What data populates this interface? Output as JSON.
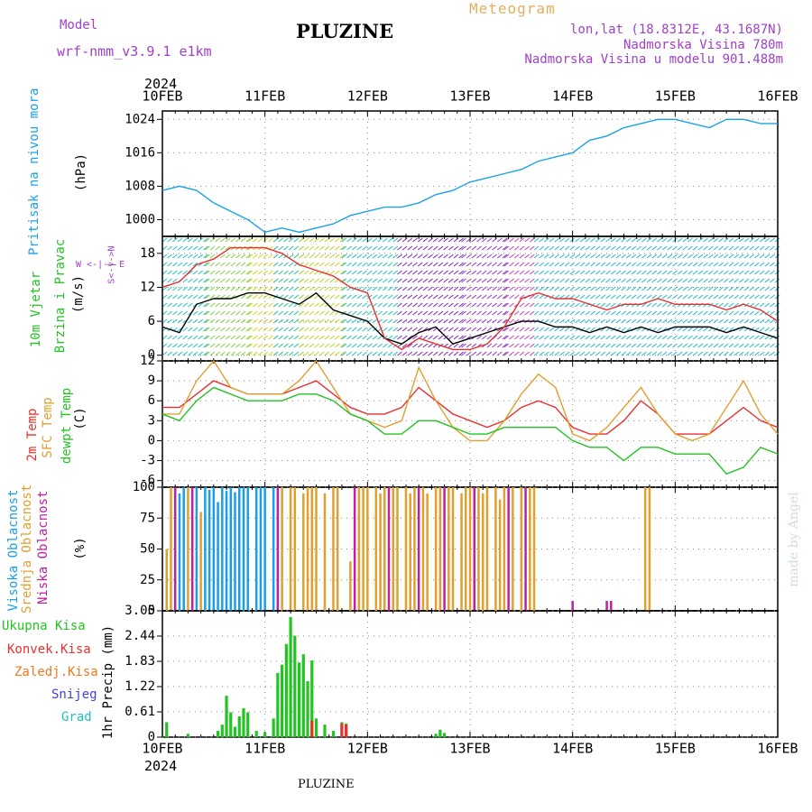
{
  "header": {
    "model_label": "Model",
    "model_name": "wrf-nmm_v3.9.1  e1km",
    "station": "PLUZINE",
    "product": "Meteogram",
    "lonlat": "lon,lat (18.8312E, 43.1687N)",
    "elevation": "Nadmorska Visina 780m",
    "model_elevation": "Nadmorska Visina u modelu 901.488m",
    "year_top": "2024",
    "year_bottom": "2024",
    "footer_station": "PLUZINE",
    "watermark": "made by Angel"
  },
  "colors": {
    "pressure": "#1aa3e8",
    "wind_speed": "#000000",
    "gust": "#e83030",
    "temp2m": "#e83030",
    "sfc_temp": "#e0a030",
    "dewpt": "#22c422",
    "high_cloud": "#1a9ee8",
    "mid_cloud": "#e0a030",
    "low_cloud": "#c0209e",
    "total_precip": "#22c422",
    "conv_precip": "#e83030",
    "frozen_precip": "#f07820",
    "snow": "#4040e0",
    "graupel": "#20c0c0"
  },
  "x_ticks": [
    "10FEB",
    "11FEB",
    "12FEB",
    "13FEB",
    "14FEB",
    "15FEB",
    "16FEB"
  ],
  "panels": {
    "pressure": {
      "label": "Pritisak na nivou mora",
      "unit": "(hPa)",
      "ticks": [
        "1024",
        "1016",
        "1008",
        "1000"
      ]
    },
    "wind": {
      "label1": "10m Vjetar",
      "label2": "Brzina i Pravac",
      "unit": "(m/s)",
      "ticks": [
        "18",
        "12",
        "6",
        "0"
      ],
      "compass": "W <-|-> E",
      "compass_ns": "S<-|->N"
    },
    "temp": {
      "label1": "2m Temp",
      "label2": "SFC Temp",
      "label3": "dewpt Temp",
      "unit": "(C)",
      "ticks": [
        "12",
        "9",
        "6",
        "3",
        "0",
        "-3",
        "-6"
      ]
    },
    "cloud": {
      "label1": "Visoka Oblacnost",
      "label2": "Srednja Oblacnost",
      "label3": "Niska Oblacnost",
      "unit": "(%)",
      "ticks": [
        "100",
        "75",
        "50",
        "25",
        "0"
      ]
    },
    "precip": {
      "unit": "1hr Precip (mm)",
      "ticks": [
        "3.05",
        "2.44",
        "1.83",
        "1.22",
        "0.61",
        "0"
      ],
      "legend": [
        "Ukupna Kisa",
        "Konvek.Kisa",
        "Zaledj.Kisa",
        "Snijeg",
        "Grad"
      ]
    }
  },
  "chart_data": [
    {
      "type": "line",
      "name": "pressure",
      "x_unit": "hours since 10FEB 00UTC",
      "ylim": [
        996,
        1026
      ],
      "series": [
        {
          "name": "Pritisak na nivou mora",
          "x": [
            0,
            4,
            8,
            12,
            16,
            20,
            24,
            28,
            32,
            36,
            40,
            44,
            48,
            52,
            56,
            60,
            64,
            68,
            72,
            76,
            80,
            84,
            88,
            92,
            96,
            100,
            104,
            108,
            112,
            116,
            120,
            124,
            128,
            132,
            136,
            140,
            144
          ],
          "values": [
            1007,
            1008,
            1007,
            1004,
            1002,
            1000,
            997,
            998,
            997,
            998,
            999,
            1001,
            1002,
            1003,
            1003,
            1004,
            1006,
            1007,
            1009,
            1010,
            1011,
            1012,
            1014,
            1015,
            1016,
            1019,
            1020,
            1022,
            1023,
            1024,
            1024,
            1023,
            1022,
            1024,
            1024,
            1023,
            1023
          ]
        }
      ]
    },
    {
      "type": "line",
      "name": "wind",
      "x_unit": "hours since 10FEB 00UTC",
      "ylim": [
        -1,
        21
      ],
      "series": [
        {
          "name": "wind_speed",
          "x": [
            0,
            4,
            8,
            12,
            16,
            20,
            24,
            28,
            32,
            36,
            40,
            44,
            48,
            52,
            56,
            60,
            64,
            68,
            72,
            76,
            80,
            84,
            88,
            92,
            96,
            100,
            104,
            108,
            112,
            116,
            120,
            124,
            128,
            132,
            136,
            140,
            144
          ],
          "values": [
            5,
            4,
            9,
            10,
            10,
            11,
            11,
            10,
            9,
            11,
            8,
            7,
            6,
            3,
            2,
            4,
            5,
            2,
            3,
            4,
            5,
            6,
            6,
            5,
            5,
            4,
            5,
            4,
            5,
            4,
            5,
            5,
            5,
            4,
            5,
            4,
            3
          ]
        },
        {
          "name": "gust",
          "x": [
            0,
            4,
            8,
            12,
            16,
            20,
            24,
            28,
            32,
            36,
            40,
            44,
            48,
            52,
            56,
            60,
            64,
            68,
            72,
            76,
            80,
            84,
            88,
            92,
            96,
            100,
            104,
            108,
            112,
            116,
            120,
            124,
            128,
            132,
            136,
            140,
            144
          ],
          "values": [
            12,
            13,
            16,
            17,
            19,
            19,
            19,
            18,
            16,
            15,
            14,
            12,
            11,
            3,
            1,
            3,
            2,
            1,
            1,
            2,
            5,
            10,
            11,
            10,
            10,
            9,
            8,
            9,
            9,
            10,
            9,
            9,
            9,
            8,
            9,
            8,
            6
          ]
        }
      ]
    },
    {
      "type": "line",
      "name": "temperature",
      "x_unit": "hours since 10FEB 00UTC",
      "ylim": [
        -7,
        12
      ],
      "series": [
        {
          "name": "2m Temp",
          "x": [
            0,
            4,
            8,
            12,
            16,
            20,
            24,
            28,
            32,
            36,
            40,
            44,
            48,
            52,
            56,
            60,
            64,
            68,
            72,
            76,
            80,
            84,
            88,
            92,
            96,
            100,
            104,
            108,
            112,
            116,
            120,
            124,
            128,
            132,
            136,
            140,
            144
          ],
          "values": [
            5,
            5,
            7,
            9,
            8,
            7,
            7,
            7,
            8,
            9,
            7,
            5,
            4,
            4,
            5,
            8,
            6,
            4,
            3,
            2,
            3,
            5,
            6,
            5,
            2,
            1,
            1,
            3,
            6,
            4,
            1,
            1,
            1,
            3,
            5,
            3,
            2
          ]
        },
        {
          "name": "SFC Temp",
          "x": [
            0,
            4,
            8,
            12,
            16,
            20,
            24,
            28,
            32,
            36,
            40,
            44,
            48,
            52,
            56,
            60,
            64,
            68,
            72,
            76,
            80,
            84,
            88,
            92,
            96,
            100,
            104,
            108,
            112,
            116,
            120,
            124,
            128,
            132,
            136,
            140,
            144
          ],
          "values": [
            4,
            4,
            9,
            12,
            8,
            7,
            7,
            7,
            9,
            12,
            8,
            4,
            3,
            2,
            3,
            11,
            6,
            2,
            0,
            0,
            3,
            7,
            10,
            8,
            1,
            0,
            2,
            5,
            8,
            4,
            1,
            0,
            1,
            5,
            9,
            4,
            1
          ]
        },
        {
          "name": "dewpt Temp",
          "x": [
            0,
            4,
            8,
            12,
            16,
            20,
            24,
            28,
            32,
            36,
            40,
            44,
            48,
            52,
            56,
            60,
            64,
            68,
            72,
            76,
            80,
            84,
            88,
            92,
            96,
            100,
            104,
            108,
            112,
            116,
            120,
            124,
            128,
            132,
            136,
            140,
            144
          ],
          "values": [
            4,
            3,
            6,
            8,
            7,
            6,
            6,
            6,
            7,
            7,
            6,
            4,
            3,
            1,
            1,
            3,
            3,
            2,
            1,
            1,
            2,
            2,
            2,
            2,
            0,
            -1,
            -1,
            -3,
            -1,
            -1,
            -2,
            -2,
            -2,
            -5,
            -4,
            -1,
            -2
          ]
        }
      ]
    },
    {
      "type": "bar",
      "name": "cloud",
      "x_unit": "hours since 10FEB 00UTC",
      "ylim": [
        0,
        100
      ],
      "series": [
        {
          "name": "Visoka Oblacnost",
          "x": [
            4,
            5,
            8,
            10,
            11,
            12,
            13,
            14,
            15,
            16,
            17,
            18,
            19,
            20,
            22,
            23,
            24,
            26
          ],
          "values": [
            95,
            100,
            100,
            100,
            98,
            100,
            88,
            100,
            97,
            100,
            96,
            100,
            100,
            100,
            100,
            100,
            100,
            100
          ]
        },
        {
          "name": "Srednja Oblacnost",
          "x": [
            1,
            2,
            6,
            9,
            28,
            30,
            31,
            33,
            34,
            35,
            36,
            38,
            40,
            41,
            44,
            46,
            47,
            48,
            50,
            51,
            52,
            54,
            55,
            57,
            58,
            59,
            61,
            62,
            64,
            65,
            67,
            68,
            70,
            71,
            72,
            74,
            75,
            76,
            78,
            79,
            80,
            82,
            84,
            86,
            87,
            113,
            114
          ],
          "values": [
            50,
            100,
            100,
            80,
            100,
            100,
            100,
            95,
            100,
            100,
            100,
            95,
            100,
            100,
            40,
            100,
            100,
            100,
            100,
            95,
            100,
            100,
            100,
            100,
            95,
            100,
            100,
            95,
            100,
            100,
            100,
            100,
            95,
            100,
            100,
            100,
            95,
            100,
            100,
            90,
            100,
            100,
            100,
            100,
            100,
            100,
            100
          ]
        },
        {
          "name": "Niska Oblacnost",
          "x": [
            3,
            7,
            27,
            45,
            53,
            60,
            66,
            73,
            81,
            85,
            96,
            104,
            105
          ],
          "values": [
            100,
            100,
            100,
            100,
            100,
            100,
            100,
            100,
            100,
            100,
            8,
            8,
            8
          ]
        }
      ]
    },
    {
      "type": "bar",
      "name": "precip",
      "x_unit": "hours since 10FEB 00UTC",
      "ylim": [
        0,
        3.05
      ],
      "series": [
        {
          "name": "Ukupna Kisa",
          "x": [
            1,
            6,
            13,
            14,
            15,
            16,
            17,
            18,
            19,
            20,
            22,
            24,
            26,
            27,
            28,
            29,
            30,
            31,
            32,
            33,
            34,
            35,
            36,
            38,
            40,
            42,
            43,
            64,
            65,
            66
          ],
          "values": [
            0.36,
            0.08,
            0.15,
            0.3,
            1.0,
            0.6,
            0.25,
            0.5,
            0.7,
            0.6,
            0.15,
            0.12,
            0.45,
            1.55,
            1.75,
            2.25,
            2.9,
            2.45,
            1.8,
            2.0,
            1.35,
            1.85,
            0.45,
            0.3,
            0.15,
            0.36,
            0.33,
            0.08,
            0.18,
            0.1
          ]
        },
        {
          "name": "Konvek.Kisa",
          "x": [
            35,
            42,
            43
          ],
          "values": [
            0.4,
            0.33,
            0.3
          ]
        }
      ]
    }
  ]
}
